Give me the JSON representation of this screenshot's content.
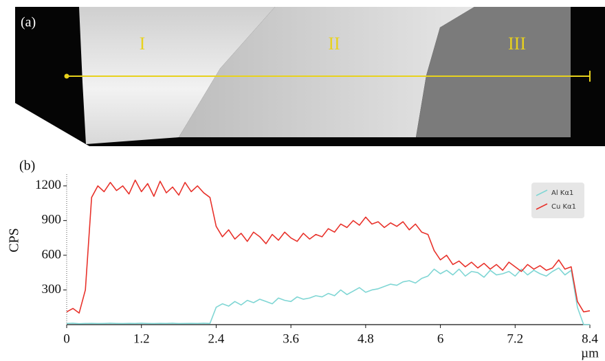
{
  "panel_a": {
    "label": "(a)",
    "regions": [
      "I",
      "II",
      "III"
    ]
  },
  "chart_data": {
    "type": "line",
    "panel_label": "(b)",
    "ylabel": "CPS",
    "xlabel": "µm",
    "x": [
      0,
      0.1,
      0.2,
      0.3,
      0.4,
      0.5,
      0.6,
      0.7,
      0.8,
      0.9,
      1.0,
      1.1,
      1.2,
      1.3,
      1.4,
      1.5,
      1.6,
      1.7,
      1.8,
      1.9,
      2.0,
      2.1,
      2.2,
      2.3,
      2.4,
      2.5,
      2.6,
      2.7,
      2.8,
      2.9,
      3.0,
      3.1,
      3.2,
      3.3,
      3.4,
      3.5,
      3.6,
      3.7,
      3.8,
      3.9,
      4.0,
      4.1,
      4.2,
      4.3,
      4.4,
      4.5,
      4.6,
      4.7,
      4.8,
      4.9,
      5.0,
      5.1,
      5.2,
      5.3,
      5.4,
      5.5,
      5.6,
      5.7,
      5.8,
      5.9,
      6.0,
      6.1,
      6.2,
      6.3,
      6.4,
      6.5,
      6.6,
      6.7,
      6.8,
      6.9,
      7.0,
      7.1,
      7.2,
      7.3,
      7.4,
      7.5,
      7.6,
      7.7,
      7.8,
      7.9,
      8.0,
      8.1,
      8.2,
      8.3,
      8.4
    ],
    "series": [
      {
        "name": "Al Kα1",
        "color": "#7fd6d4",
        "values": [
          10,
          12,
          8,
          10,
          11,
          9,
          10,
          12,
          10,
          9,
          11,
          10,
          12,
          10,
          9,
          11,
          10,
          12,
          9,
          10,
          11,
          10,
          12,
          10,
          150,
          180,
          160,
          200,
          170,
          210,
          190,
          220,
          200,
          180,
          230,
          210,
          200,
          240,
          220,
          230,
          250,
          240,
          270,
          250,
          300,
          260,
          290,
          320,
          280,
          300,
          310,
          330,
          350,
          340,
          370,
          380,
          360,
          400,
          420,
          480,
          440,
          470,
          430,
          480,
          420,
          460,
          450,
          410,
          470,
          430,
          440,
          460,
          420,
          480,
          430,
          470,
          440,
          420,
          460,
          490,
          430,
          470,
          150,
          0,
          0
        ]
      },
      {
        "name": "Cu Kα1",
        "color": "#e8312a",
        "values": [
          110,
          140,
          100,
          300,
          1100,
          1200,
          1150,
          1230,
          1160,
          1200,
          1130,
          1250,
          1150,
          1220,
          1110,
          1240,
          1140,
          1190,
          1120,
          1230,
          1150,
          1200,
          1140,
          1100,
          850,
          760,
          820,
          740,
          790,
          720,
          800,
          760,
          700,
          780,
          730,
          800,
          750,
          720,
          790,
          740,
          780,
          760,
          830,
          800,
          870,
          840,
          900,
          860,
          930,
          870,
          890,
          840,
          880,
          850,
          890,
          820,
          870,
          800,
          780,
          640,
          560,
          600,
          520,
          550,
          500,
          540,
          490,
          530,
          480,
          520,
          470,
          540,
          500,
          460,
          520,
          480,
          510,
          470,
          490,
          560,
          480,
          500,
          200,
          110,
          120
        ]
      }
    ],
    "xlim": [
      0,
      8.4
    ],
    "ylim": [
      0,
      1300
    ],
    "xticks": [
      0,
      1.2,
      2.4,
      3.6,
      4.8,
      6,
      7.2,
      8.4
    ],
    "yticks": [
      300,
      600,
      900,
      1200
    ]
  }
}
